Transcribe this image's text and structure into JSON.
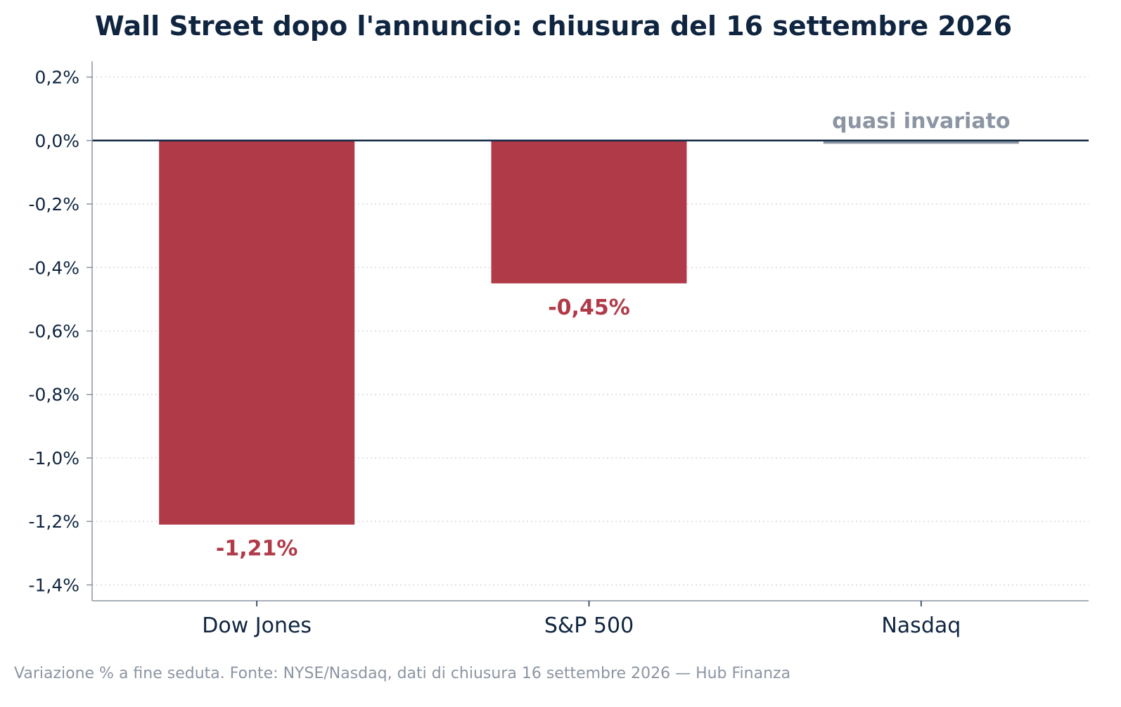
{
  "chart_data": {
    "type": "bar",
    "title": "Wall Street dopo l'annuncio: chiusura del 16 settembre 2026",
    "xlabel": "",
    "ylabel": "",
    "categories": [
      "Dow Jones",
      "S&P 500",
      "Nasdaq"
    ],
    "values": [
      -1.21,
      -0.45,
      -0.01
    ],
    "value_labels": [
      "-1,21%",
      "-0,45%",
      "quasi invariato"
    ],
    "ylim": [
      -1.45,
      0.25
    ],
    "yticks": [
      0.2,
      0.0,
      -0.2,
      -0.4,
      -0.6,
      -0.8,
      -1.0,
      -1.2,
      -1.4
    ],
    "ytick_labels": [
      "0,2%",
      "0,0%",
      "-0,2%",
      "-0,4%",
      "-0,6%",
      "-0,8%",
      "-1,0%",
      "-1,2%",
      "-1,4%"
    ],
    "grid": "horizontal dotted",
    "colors": {
      "negative": "#b03a48",
      "flat": "#8c95a3",
      "zero_line": "#0f2540",
      "text": "#0f2540",
      "axis": "#8c95a3",
      "grid": "#d9d9d9"
    }
  },
  "caption": "Variazione % a fine seduta. Fonte: NYSE/Nasdaq, dati di chiusura 16 settembre 2026 — Hub Finanza"
}
